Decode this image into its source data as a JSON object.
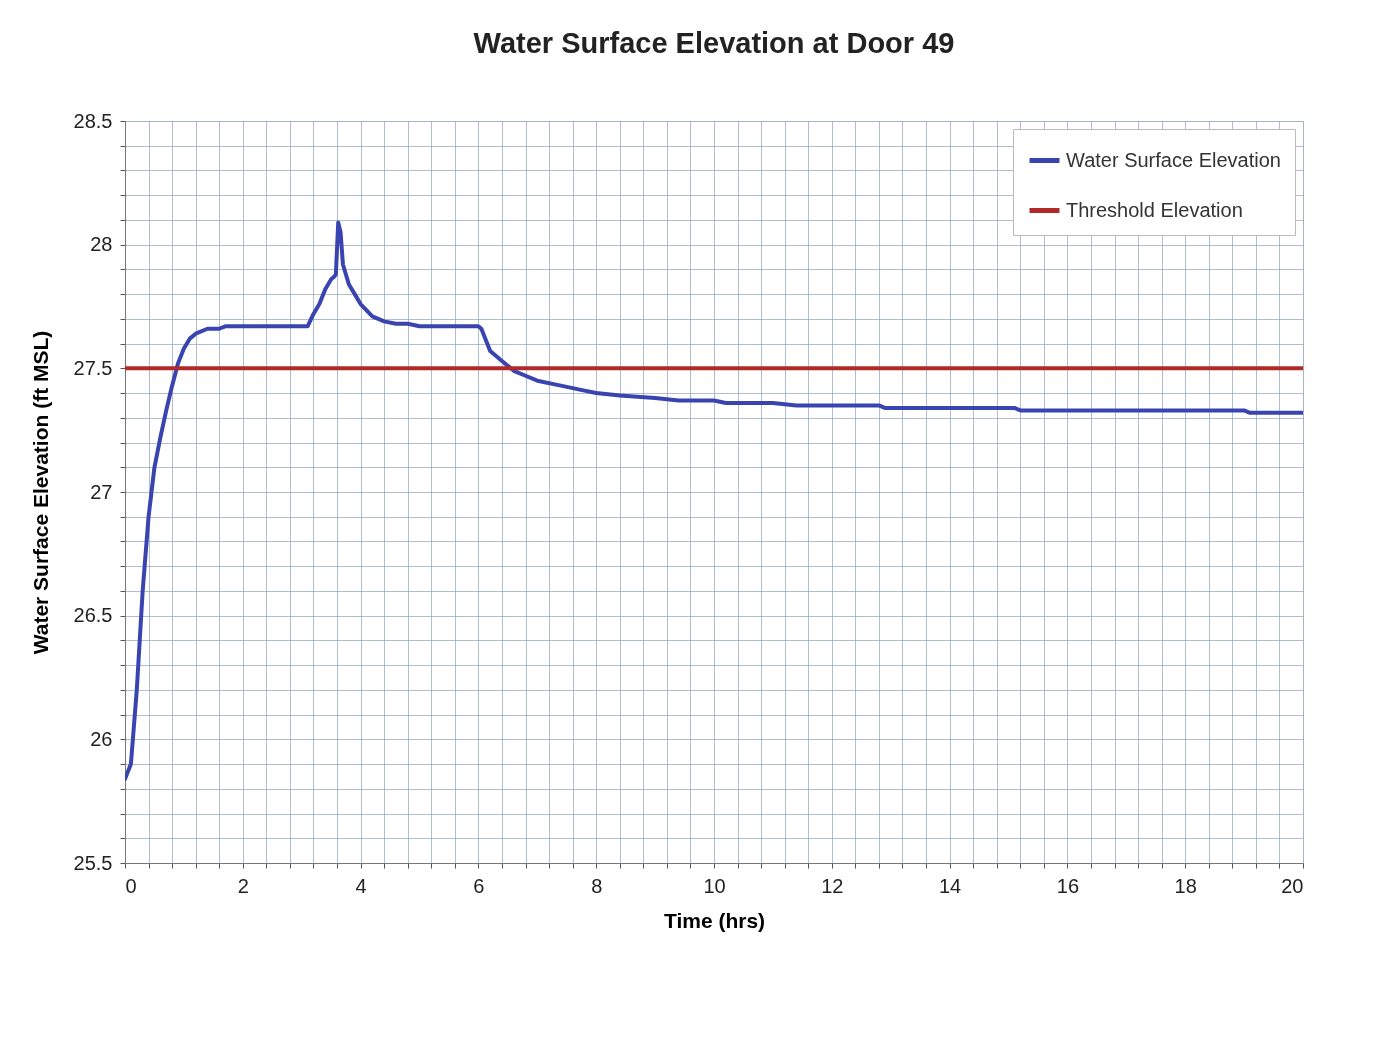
{
  "chart_data": {
    "type": "line",
    "title": "Water Surface Elevation at Door 49",
    "xlabel": "Time (hrs)",
    "ylabel": "Water Surface Elevation (ft MSL)",
    "xlim": [
      0,
      20
    ],
    "ylim": [
      25.5,
      28.5
    ],
    "xticks": [
      0,
      {
        "value": 0.4,
        "label": null
      },
      {
        "value": 0.8,
        "label": null
      },
      {
        "value": 1.2,
        "label": null
      },
      {
        "value": 1.6,
        "label": null
      },
      2,
      {
        "value": 2.4,
        "label": null
      },
      {
        "value": 2.8,
        "label": null
      },
      {
        "value": 3.2,
        "label": null
      },
      {
        "value": 3.6,
        "label": null
      },
      4,
      {
        "value": 4.4,
        "label": null
      },
      {
        "value": 4.8,
        "label": null
      },
      {
        "value": 5.2,
        "label": null
      },
      {
        "value": 5.6,
        "label": null
      },
      6,
      {
        "value": 6.4,
        "label": null
      },
      {
        "value": 6.8,
        "label": null
      },
      {
        "value": 7.2,
        "label": null
      },
      {
        "value": 7.6,
        "label": null
      },
      8,
      {
        "value": 8.4,
        "label": null
      },
      {
        "value": 8.8,
        "label": null
      },
      {
        "value": 9.2,
        "label": null
      },
      {
        "value": 9.6,
        "label": null
      },
      10,
      {
        "value": 10.4,
        "label": null
      },
      {
        "value": 10.8,
        "label": null
      },
      {
        "value": 11.2,
        "label": null
      },
      {
        "value": 11.6,
        "label": null
      },
      12,
      {
        "value": 12.4,
        "label": null
      },
      {
        "value": 12.8,
        "label": null
      },
      {
        "value": 13.2,
        "label": null
      },
      {
        "value": 13.6,
        "label": null
      },
      14,
      {
        "value": 14.4,
        "label": null
      },
      {
        "value": 14.8,
        "label": null
      },
      {
        "value": 15.2,
        "label": null
      },
      {
        "value": 15.6,
        "label": null
      },
      16,
      {
        "value": 16.4,
        "label": null
      },
      {
        "value": 16.8,
        "label": null
      },
      {
        "value": 17.2,
        "label": null
      },
      {
        "value": 17.6,
        "label": null
      },
      18,
      {
        "value": 18.4,
        "label": null
      },
      {
        "value": 18.8,
        "label": null
      },
      {
        "value": 19.2,
        "label": null
      },
      {
        "value": 19.6,
        "label": null
      },
      20
    ],
    "yticks": [
      25.5,
      {
        "value": 25.6,
        "label": null
      },
      {
        "value": 25.7,
        "label": null
      },
      {
        "value": 25.8,
        "label": null
      },
      {
        "value": 25.9,
        "label": null
      },
      26,
      {
        "value": 26.1,
        "label": null
      },
      {
        "value": 26.2,
        "label": null
      },
      {
        "value": 26.3,
        "label": null
      },
      {
        "value": 26.4,
        "label": null
      },
      26.5,
      {
        "value": 26.6,
        "label": null
      },
      {
        "value": 26.7,
        "label": null
      },
      {
        "value": 26.8,
        "label": null
      },
      {
        "value": 26.9,
        "label": null
      },
      27,
      {
        "value": 27.1,
        "label": null
      },
      {
        "value": 27.2,
        "label": null
      },
      {
        "value": 27.3,
        "label": null
      },
      {
        "value": 27.4,
        "label": null
      },
      27.5,
      {
        "value": 27.6,
        "label": null
      },
      {
        "value": 27.7,
        "label": null
      },
      {
        "value": 27.8,
        "label": null
      },
      {
        "value": 27.9,
        "label": null
      },
      28,
      {
        "value": 28.1,
        "label": null
      },
      {
        "value": 28.2,
        "label": null
      },
      {
        "value": 28.3,
        "label": null
      },
      {
        "value": 28.4,
        "label": null
      },
      28.5
    ],
    "grid": true,
    "legend": "top right",
    "marker": "none",
    "line_style": "solid",
    "series": [
      {
        "name": "Water Surface Elevation",
        "color": "#3a44b0",
        "x": [
          0,
          0.1,
          0.2,
          0.3,
          0.4,
          0.5,
          0.6,
          0.7,
          0.8,
          0.9,
          1.0,
          1.1,
          1.2,
          1.4,
          1.6,
          1.7,
          2,
          3.0,
          3.1,
          3.2,
          3.3,
          3.4,
          3.5,
          3.55,
          3.58,
          3.62,
          3.66,
          3.7,
          3.8,
          3.9,
          4.0,
          4.2,
          4.4,
          4.6,
          4.8,
          5.0,
          6.0,
          6.05,
          6.2,
          6.4,
          6.6,
          6.8,
          7,
          7.4,
          7.8,
          8,
          8.4,
          9,
          9.4,
          10,
          10.2,
          11,
          11.4,
          12,
          12.8,
          12.9,
          14,
          15.1,
          15.2,
          17,
          19,
          19.1,
          20
        ],
        "values": [
          25.84,
          25.9,
          26.2,
          26.6,
          26.9,
          27.1,
          27.22,
          27.33,
          27.43,
          27.52,
          27.58,
          27.62,
          27.64,
          27.66,
          27.66,
          27.67,
          27.67,
          27.67,
          27.67,
          27.72,
          27.76,
          27.82,
          27.86,
          27.87,
          27.88,
          28.09,
          28.05,
          27.92,
          27.84,
          27.8,
          27.76,
          27.71,
          27.69,
          27.68,
          27.68,
          27.67,
          27.67,
          27.66,
          27.57,
          27.53,
          27.49,
          27.47,
          27.45,
          27.43,
          27.41,
          27.4,
          27.39,
          27.38,
          27.37,
          27.37,
          27.36,
          27.36,
          27.35,
          27.35,
          27.35,
          27.34,
          27.34,
          27.34,
          27.33,
          27.33,
          27.33,
          27.32,
          27.32
        ]
      },
      {
        "name": "Threshold Elevation",
        "color": "#b02a2a",
        "x": [
          0,
          20
        ],
        "values": [
          27.5,
          27.5
        ]
      }
    ]
  }
}
